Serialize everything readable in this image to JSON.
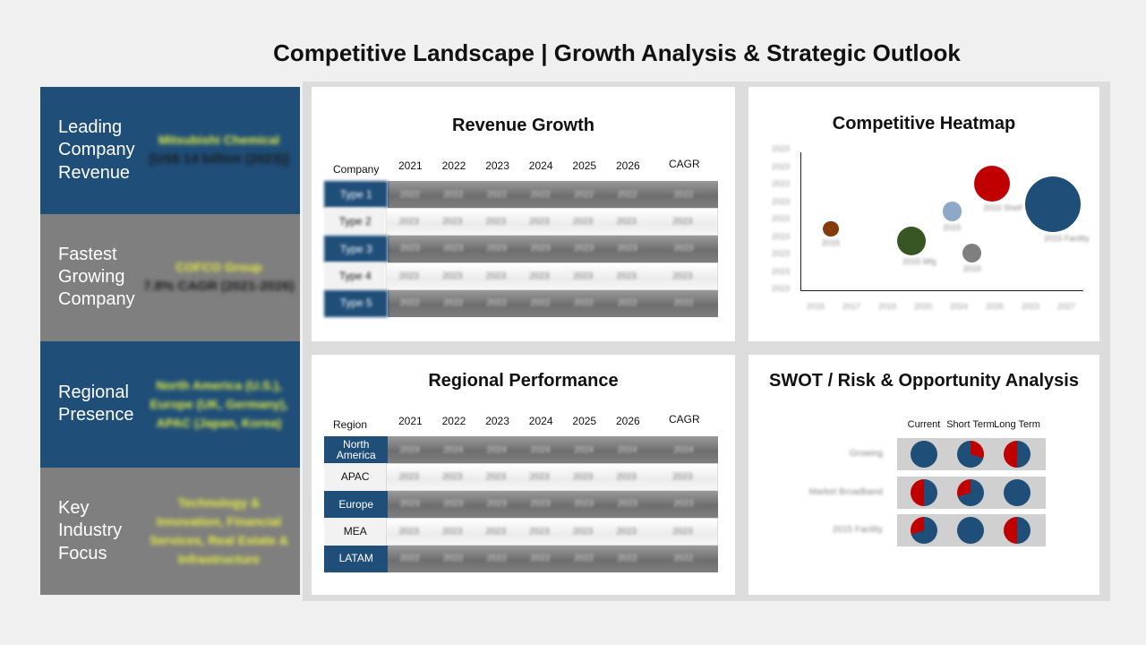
{
  "title": "Competitive Landscape | Growth Analysis & Strategic Outlook",
  "kpis": [
    {
      "label": "Leading Company Revenue",
      "highlight": "Mitsubishi Chemical",
      "value": "[US$ 14 billion (2023)]"
    },
    {
      "label": "Fastest Growing Company",
      "highlight": "COFCO Group",
      "value": "7.8% CAGR (2021-2026)"
    },
    {
      "label": "Regional Presence",
      "highlight": "North America (U.S.), Europe (UK, Germany), APAC (Japan, Korea)",
      "value": ""
    },
    {
      "label": "Key Industry Focus",
      "highlight": "Technology & Innovation, Financial Services, Real Estate & Infrastructure",
      "value": ""
    }
  ],
  "revenue": {
    "title": "Revenue Growth",
    "corner": "Company",
    "years": [
      "2021",
      "2022",
      "2023",
      "2024",
      "2025",
      "2026"
    ],
    "cagr_label": "CAGR",
    "rows": [
      {
        "label": "Type 1",
        "values": [
          "2022",
          "2022",
          "2022",
          "2022",
          "2022",
          "2022"
        ],
        "cagr": "2022"
      },
      {
        "label": "Type 2",
        "values": [
          "2023",
          "2023",
          "2023",
          "2023",
          "2023",
          "2023"
        ],
        "cagr": "2023"
      },
      {
        "label": "Type 3",
        "values": [
          "2023",
          "2023",
          "2023",
          "2023",
          "2023",
          "2023"
        ],
        "cagr": "2023"
      },
      {
        "label": "Type 4",
        "values": [
          "2023",
          "2023",
          "2023",
          "2023",
          "2023",
          "2023"
        ],
        "cagr": "2023"
      },
      {
        "label": "Type 5",
        "values": [
          "2022",
          "2022",
          "2022",
          "2022",
          "2022",
          "2022"
        ],
        "cagr": "2022"
      }
    ]
  },
  "regional": {
    "title": "Regional Performance",
    "corner": "Region",
    "years": [
      "2021",
      "2022",
      "2023",
      "2024",
      "2025",
      "2026"
    ],
    "cagr_label": "CAGR",
    "rows": [
      {
        "label": "North America",
        "values": [
          "2024",
          "2024",
          "2024",
          "2024",
          "2024",
          "2024"
        ],
        "cagr": "2024"
      },
      {
        "label": "APAC",
        "values": [
          "2023",
          "2023",
          "2023",
          "2023",
          "2023",
          "2023"
        ],
        "cagr": "2023"
      },
      {
        "label": "Europe",
        "values": [
          "2023",
          "2023",
          "2023",
          "2023",
          "2023",
          "2023"
        ],
        "cagr": "2023"
      },
      {
        "label": "MEA",
        "values": [
          "2023",
          "2023",
          "2023",
          "2023",
          "2023",
          "2023"
        ],
        "cagr": "2023"
      },
      {
        "label": "LATAM",
        "values": [
          "2022",
          "2022",
          "2022",
          "2022",
          "2022",
          "2022"
        ],
        "cagr": "2022"
      }
    ]
  },
  "heatmap": {
    "title": "Competitive Heatmap",
    "y_ticks": [
      "2023",
      "2023",
      "2023",
      "2023",
      "2023",
      "2023",
      "2023",
      "2023",
      "2023"
    ],
    "x_ticks": [
      "2015",
      "2017",
      "2019",
      "2020",
      "2024",
      "2025",
      "2023",
      "2027"
    ],
    "bubble_labels": [
      "2015",
      "2015 Mfg",
      "2015",
      "2015",
      "2015 Shelf",
      "2015 Facility"
    ]
  },
  "swot": {
    "title": "SWOT / Risk & Opportunity Analysis",
    "columns": [
      "Current",
      "Short Term",
      "Long Term"
    ],
    "rows": [
      "Growing",
      "Market Broadband",
      "2015 Facility"
    ]
  },
  "chart_data": {
    "type": "scatter",
    "title": "Competitive Heatmap",
    "points": [
      {
        "x": 2015,
        "y": 3.6,
        "size": 1,
        "color": "#843c0c"
      },
      {
        "x": 2019,
        "y": 2.9,
        "size": 3,
        "color": "#375623"
      },
      {
        "x": 2021,
        "y": 4.6,
        "size": 1.5,
        "color": "#8ea9c8"
      },
      {
        "x": 2022,
        "y": 2.2,
        "size": 1.5,
        "color": "#7f7f7f"
      },
      {
        "x": 2023,
        "y": 6.2,
        "size": 4,
        "color": "#c00000"
      },
      {
        "x": 2026,
        "y": 5.0,
        "size": 7,
        "color": "#1f4e79"
      }
    ],
    "pie_fractions": [
      [
        0,
        0.3,
        0.5
      ],
      [
        0.5,
        0.3,
        0
      ],
      [
        0.3,
        0,
        0.5
      ]
    ]
  }
}
